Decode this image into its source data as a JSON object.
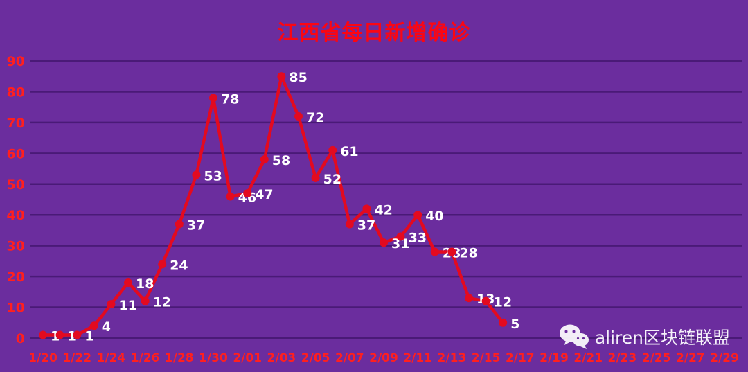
{
  "title": "江西省每日新增确诊",
  "watermark": {
    "text": "aliren区块链联盟",
    "icon": "wechat-icon"
  },
  "colors": {
    "background": "#6b2d9e",
    "gridline": "#4a1a77",
    "line": "#e30a20",
    "marker": "#e30a20",
    "tick_label": "#ff1f1f",
    "value_label": "#ffffff",
    "title": "#fb0613",
    "watermark_text": "#f5f1fa"
  },
  "chart_data": {
    "type": "line",
    "title": "江西省每日新增确诊",
    "dates": [
      "1/20",
      "1/21",
      "1/22",
      "1/23",
      "1/24",
      "1/25",
      "1/26",
      "1/27",
      "1/28",
      "1/29",
      "1/30",
      "1/31",
      "2/01",
      "2/02",
      "2/03",
      "2/04",
      "2/05",
      "2/06",
      "2/07",
      "2/08",
      "2/09",
      "2/10",
      "2/11",
      "2/12",
      "2/13",
      "2/14",
      "2/15",
      "2/16"
    ],
    "values": [
      1,
      1,
      1,
      4,
      11,
      18,
      12,
      24,
      37,
      53,
      78,
      46,
      47,
      58,
      85,
      72,
      52,
      61,
      37,
      42,
      31,
      33,
      40,
      28,
      28,
      13,
      12,
      5
    ],
    "x_axis_tick_labels": [
      "1/20",
      "1/22",
      "1/24",
      "1/26",
      "1/28",
      "1/30",
      "2/01",
      "2/03",
      "2/05",
      "2/07",
      "2/09",
      "2/11",
      "2/13",
      "2/15",
      "2/17",
      "2/19",
      "2/21",
      "2/23",
      "2/25",
      "2/27",
      "2/29"
    ],
    "x_day_span": 40,
    "y_ticks": [
      0,
      10,
      20,
      30,
      40,
      50,
      60,
      70,
      80,
      90
    ],
    "ylim": [
      0,
      90
    ],
    "grid": true,
    "legend_position": "none",
    "xlabel": "",
    "ylabel": ""
  }
}
